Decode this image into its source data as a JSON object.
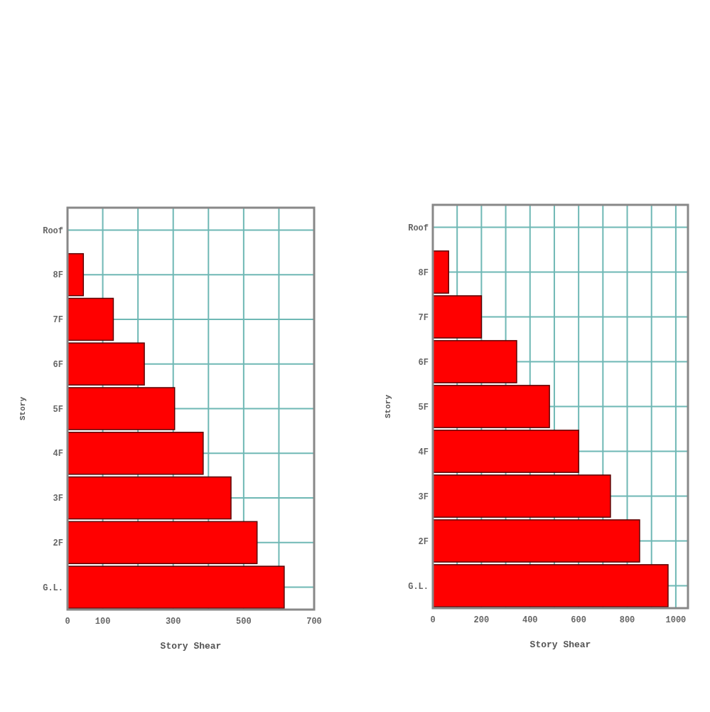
{
  "chart_data": [
    {
      "type": "bar",
      "orientation": "horizontal",
      "xlabel": "Story Shear",
      "ylabel": "Story",
      "categories": [
        "Roof",
        "8F",
        "7F",
        "6F",
        "5F",
        "4F",
        "3F",
        "2F",
        "G.L."
      ],
      "values": [
        null,
        45,
        130,
        218,
        304,
        385,
        464,
        538,
        615
      ],
      "color": "#ff0000",
      "xlim": [
        0,
        700
      ],
      "xticks": [
        0,
        100,
        {
          "value": 200,
          "label": null
        },
        300,
        {
          "value": 400,
          "label": null
        },
        500,
        {
          "value": 600,
          "label": null
        },
        700
      ],
      "grid": true
    },
    {
      "type": "bar",
      "orientation": "horizontal",
      "xlabel": "Story Shear",
      "ylabel": "Story",
      "categories": [
        "Roof",
        "8F",
        "7F",
        "6F",
        "5F",
        "4F",
        "3F",
        "2F",
        "G.L."
      ],
      "values": [
        null,
        65,
        200,
        345,
        480,
        600,
        731,
        851,
        968
      ],
      "color": "#ff0000",
      "xlim": [
        0,
        1050
      ],
      "xticks": [
        0,
        {
          "value": 100,
          "label": null
        },
        200,
        {
          "value": 300,
          "label": null
        },
        400,
        {
          "value": 500,
          "label": null
        },
        600,
        {
          "value": 700,
          "label": null
        },
        800,
        {
          "value": 900,
          "label": null
        },
        1000
      ],
      "grid": true
    }
  ]
}
